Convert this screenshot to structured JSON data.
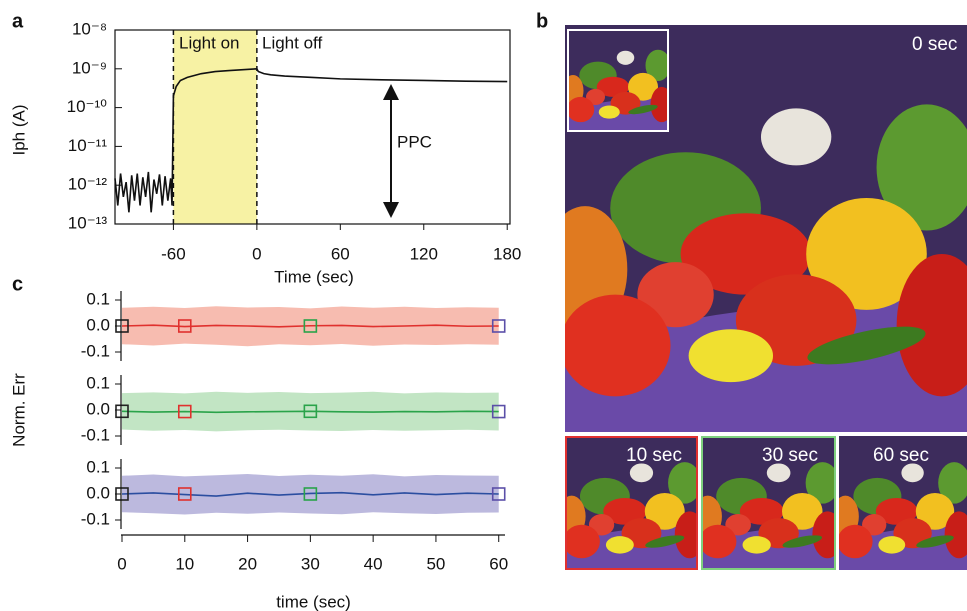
{
  "chart_data": [
    {
      "type": "line",
      "panel": "a",
      "log_y": true,
      "color": "#111111",
      "shade": [
        -60,
        0
      ],
      "shade_color": "#f7f2a4",
      "ylabel": "Iph (A)",
      "xlabel": "Time (sec)",
      "annotations": [
        "Light on",
        "Light off",
        "PPC"
      ],
      "xlim": [
        -102,
        182
      ],
      "xticks": [
        -60,
        0,
        60,
        120,
        180
      ],
      "ylim": [
        1e-13,
        1e-08
      ],
      "yticks": [
        {
          "value": 1e-13,
          "label": "10⁻¹³"
        },
        {
          "value": 1e-12,
          "label": "10⁻¹²"
        },
        {
          "value": 1e-11,
          "label": "10⁻¹¹"
        },
        {
          "value": 1e-10,
          "label": "10⁻¹⁰"
        },
        {
          "value": 1e-09,
          "label": "10⁻⁹"
        },
        {
          "value": 1e-08,
          "label": "10⁻⁸"
        }
      ],
      "x": [
        -102,
        -100,
        -98,
        -96,
        -94,
        -92,
        -90,
        -88,
        -86,
        -84,
        -82,
        -80,
        -78,
        -76,
        -74,
        -72,
        -70,
        -68,
        -66,
        -64,
        -62,
        -61,
        -60,
        -58,
        -55,
        -50,
        -40,
        -30,
        -20,
        -10,
        0,
        1,
        5,
        10,
        20,
        40,
        60,
        90,
        120,
        150,
        180
      ],
      "values": [
        1.5e-12,
        3e-13,
        2e-12,
        5e-13,
        1.2e-12,
        2e-13,
        1.8e-12,
        4e-13,
        2e-12,
        3e-13,
        1.6e-12,
        5e-13,
        2.2e-12,
        2e-13,
        1.4e-12,
        6e-13,
        1.9e-12,
        3e-13,
        1.7e-12,
        4e-13,
        1.5e-12,
        3e-13,
        2e-10,
        3.5e-10,
        5e-10,
        6e-10,
        7.5e-10,
        8.5e-10,
        9e-10,
        9.5e-10,
        1e-09,
        8.5e-10,
        7.5e-10,
        7e-10,
        6.5e-10,
        6e-10,
        5.5e-10,
        5.2e-10,
        5e-10,
        4.8e-10,
        4.7e-10
      ]
    },
    {
      "type": "band",
      "panel": "c",
      "color": "#e0312e",
      "band_color": "#f7bcb0",
      "xlim": [
        0,
        61
      ],
      "ylim": [
        -0.15,
        0.15
      ],
      "yticks": [
        -0.1,
        {
          "value": 0,
          "label": "0.0"
        },
        0.1
      ],
      "x": [
        0,
        5,
        10,
        15,
        20,
        25,
        30,
        35,
        40,
        45,
        50,
        55,
        60
      ],
      "values": [
        0,
        0.003,
        -0.002,
        0.002,
        0,
        -0.003,
        0.001,
        0.002,
        -0.002,
        0,
        0.003,
        -0.001,
        0
      ],
      "lower": [
        -0.07,
        -0.075,
        -0.068,
        -0.072,
        -0.078,
        -0.07,
        -0.074,
        -0.069,
        -0.076,
        -0.071,
        -0.073,
        -0.07,
        -0.072
      ],
      "upper": [
        0.07,
        0.074,
        0.069,
        0.076,
        0.071,
        0.073,
        0.068,
        0.075,
        0.07,
        0.074,
        0.069,
        0.072,
        0.07
      ],
      "markers": {
        "x": [
          0,
          10,
          30,
          60
        ],
        "values": [
          0,
          0,
          0,
          0
        ],
        "colors": [
          "#222222",
          "#e0312e",
          "#2aa34a",
          "#5b4fa8"
        ]
      }
    },
    {
      "type": "band",
      "color": "#2aa34a",
      "band_color": "#c2e5c4",
      "ylabel": "Norm. Err",
      "xlim": [
        0,
        61
      ],
      "ylim": [
        -0.15,
        0.15
      ],
      "yticks": [
        -0.1,
        {
          "value": 0,
          "label": "0.0"
        },
        0.1
      ],
      "x": [
        0,
        5,
        10,
        15,
        20,
        25,
        30,
        35,
        40,
        45,
        50,
        55,
        60
      ],
      "values": [
        -0.005,
        -0.008,
        -0.006,
        -0.009,
        -0.007,
        -0.006,
        -0.005,
        -0.007,
        -0.008,
        -0.006,
        -0.007,
        -0.005,
        -0.006
      ],
      "lower": [
        -0.075,
        -0.08,
        -0.077,
        -0.082,
        -0.078,
        -0.076,
        -0.079,
        -0.081,
        -0.077,
        -0.08,
        -0.078,
        -0.076,
        -0.079
      ],
      "upper": [
        0.065,
        0.068,
        0.064,
        0.07,
        0.066,
        0.069,
        0.065,
        0.067,
        0.07,
        0.064,
        0.068,
        0.066,
        0.067
      ],
      "markers": {
        "x": [
          0,
          10,
          30,
          60
        ],
        "values": [
          -0.005,
          -0.006,
          -0.005,
          -0.006
        ],
        "colors": [
          "#222222",
          "#e0312e",
          "#2aa34a",
          "#5b4fa8"
        ]
      }
    },
    {
      "type": "band",
      "color": "#2b4ea0",
      "band_color": "#bcb9de",
      "xlabel": "time (sec)",
      "xlim": [
        0,
        61
      ],
      "ylim": [
        -0.15,
        0.15
      ],
      "yticks": [
        -0.1,
        {
          "value": 0,
          "label": "0.0"
        },
        0.1
      ],
      "xticks": [
        0,
        10,
        20,
        30,
        40,
        50,
        60
      ],
      "x": [
        0,
        5,
        10,
        15,
        20,
        25,
        30,
        35,
        40,
        45,
        50,
        55,
        60
      ],
      "values": [
        0,
        0.004,
        -0.002,
        -0.008,
        0.003,
        -0.004,
        0.002,
        0.005,
        -0.003,
        0.004,
        -0.002,
        0.003,
        0
      ],
      "lower": [
        -0.07,
        -0.074,
        -0.079,
        -0.072,
        -0.076,
        -0.071,
        -0.075,
        -0.078,
        -0.07,
        -0.074,
        -0.077,
        -0.072,
        -0.071
      ],
      "upper": [
        0.07,
        0.075,
        0.068,
        0.072,
        0.077,
        0.069,
        0.074,
        0.07,
        0.076,
        0.068,
        0.073,
        0.071,
        0.07
      ],
      "markers": {
        "x": [
          0,
          10,
          30,
          60
        ],
        "values": [
          0,
          0,
          0,
          0
        ],
        "colors": [
          "#222222",
          "#e0312e",
          "#2aa34a",
          "#5b4fa8"
        ]
      }
    }
  ],
  "image_panel": {
    "panel": "b",
    "frames": [
      "0 sec",
      "10 sec",
      "30 sec",
      "60 sec"
    ]
  }
}
